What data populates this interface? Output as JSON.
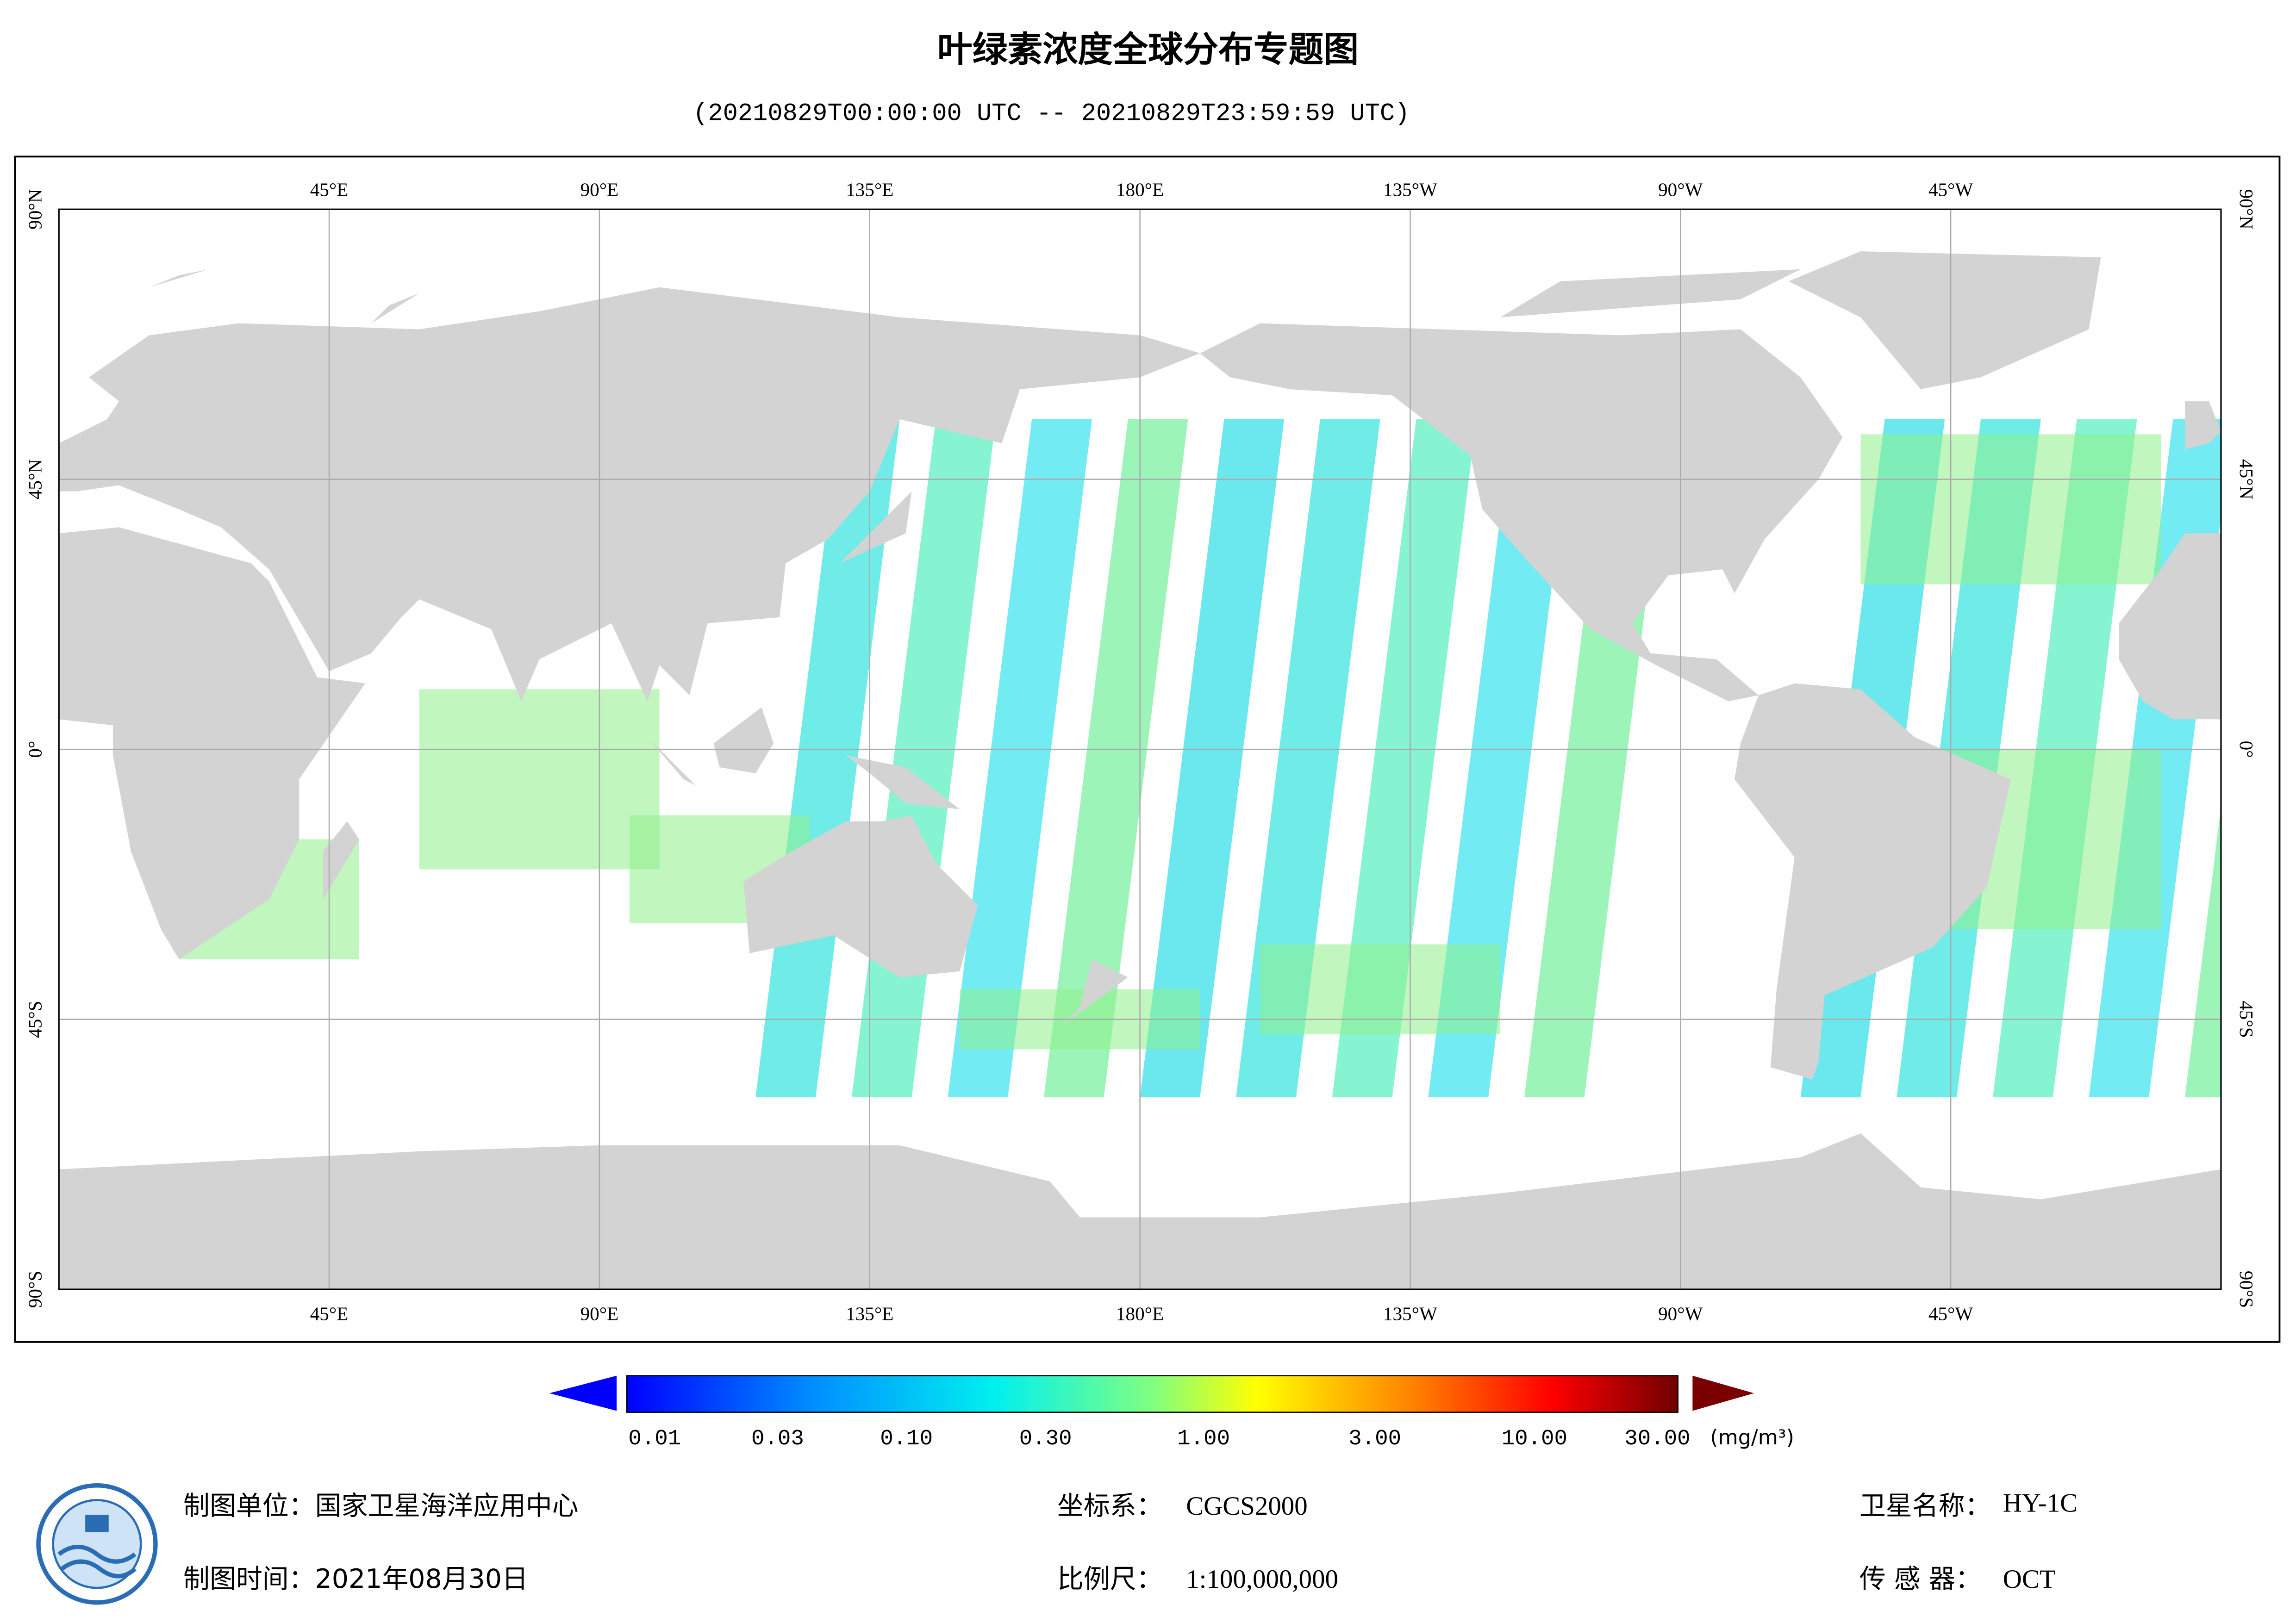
{
  "title": "叶绿素浓度全球分布专题图",
  "subtitle": "(20210829T00:00:00 UTC -- 20210829T23:59:59 UTC)",
  "map": {
    "lon_labels": [
      "45°E",
      "90°E",
      "135°E",
      "180°E",
      "135°W",
      "90°W",
      "45°W"
    ],
    "lat_labels": [
      "90°N",
      "45°N",
      "0°",
      "45°S",
      "90°S"
    ]
  },
  "colorbar": {
    "ticks": [
      "0.01",
      "0.03",
      "0.10",
      "0.30",
      "1.00",
      "3.00",
      "10.00",
      "30.00"
    ],
    "unit": "(mg/m³)"
  },
  "footer": {
    "producer": "制图单位：国家卫星海洋应用中心",
    "date": "制图时间：2021年08月30日",
    "crs_label": "坐标系：",
    "crs_value": "CGCS2000",
    "scale_label": "比例尺：",
    "scale_value": "1:100,000,000",
    "satellite_label": "卫星名称：",
    "satellite_value": "HY-1C",
    "sensor_label": "传 感 器：",
    "sensor_value": "OCT"
  }
}
